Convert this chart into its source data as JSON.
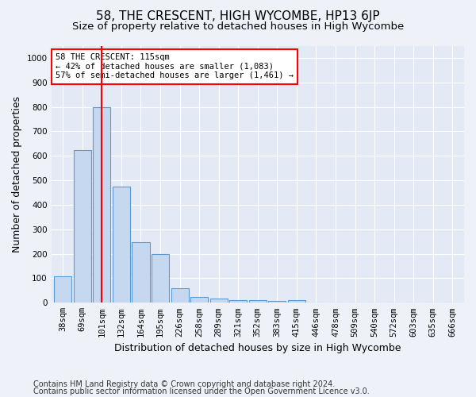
{
  "title": "58, THE CRESCENT, HIGH WYCOMBE, HP13 6JP",
  "subtitle": "Size of property relative to detached houses in High Wycombe",
  "xlabel": "Distribution of detached houses by size in High Wycombe",
  "ylabel": "Number of detached properties",
  "categories": [
    "38sqm",
    "69sqm",
    "101sqm",
    "132sqm",
    "164sqm",
    "195sqm",
    "226sqm",
    "258sqm",
    "289sqm",
    "321sqm",
    "352sqm",
    "383sqm",
    "415sqm",
    "446sqm",
    "478sqm",
    "509sqm",
    "540sqm",
    "572sqm",
    "603sqm",
    "635sqm",
    "666sqm"
  ],
  "values": [
    108,
    625,
    800,
    475,
    248,
    200,
    60,
    25,
    18,
    10,
    10,
    8,
    10,
    0,
    0,
    0,
    0,
    0,
    0,
    0,
    0
  ],
  "bar_color": "#c5d8f0",
  "bar_edge_color": "#5b9bd5",
  "red_line_x": 2,
  "annotation_line1": "58 THE CRESCENT: 115sqm",
  "annotation_line2": "← 42% of detached houses are smaller (1,083)",
  "annotation_line3": "57% of semi-detached houses are larger (1,461) →",
  "annotation_box_color": "white",
  "annotation_box_edge": "red",
  "ylim": [
    0,
    1050
  ],
  "yticks": [
    0,
    100,
    200,
    300,
    400,
    500,
    600,
    700,
    800,
    900,
    1000
  ],
  "footer1": "Contains HM Land Registry data © Crown copyright and database right 2024.",
  "footer2": "Contains public sector information licensed under the Open Government Licence v3.0.",
  "bg_color": "#eef2f8",
  "plot_bg_color": "#e4eaf5",
  "grid_color": "white",
  "title_fontsize": 11,
  "subtitle_fontsize": 9.5,
  "label_fontsize": 9,
  "tick_fontsize": 7.5,
  "footer_fontsize": 7
}
